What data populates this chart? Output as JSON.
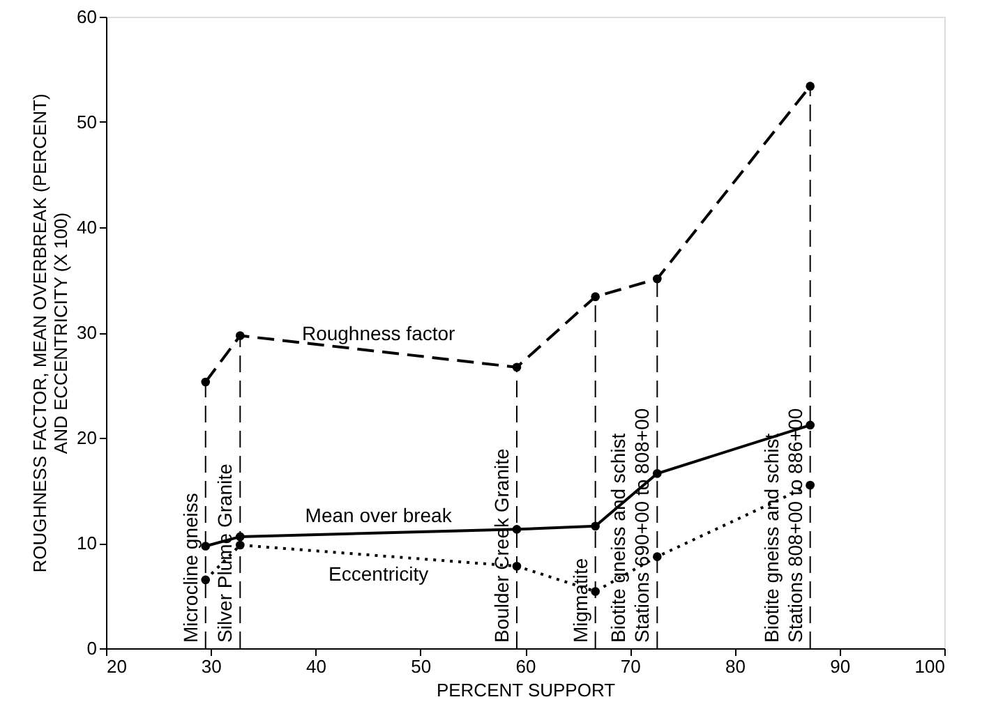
{
  "chart_data": {
    "type": "line",
    "xlabel": "PERCENT SUPPORT",
    "ylabel": "ROUGHNESS FACTOR, MEAN OVERBREAK (PERCENT)\nAND ECCENTRICITY (X 100)",
    "x": [
      29.5,
      32.8,
      59.2,
      66.7,
      72.6,
      87.2
    ],
    "series": [
      {
        "name": "Roughness factor",
        "color": "#000000",
        "line_style": "dashed",
        "values": [
          25.3,
          29.7,
          26.7,
          33.4,
          35.1,
          53.4
        ]
      },
      {
        "name": "Mean over break",
        "color": "#000000",
        "line_style": "solid",
        "values": [
          9.7,
          10.6,
          11.3,
          11.6,
          16.6,
          21.2
        ]
      },
      {
        "name": "Eccentricity",
        "color": "#000000",
        "line_style": "dotted",
        "values": [
          6.5,
          9.8,
          7.8,
          5.4,
          8.7,
          15.5
        ]
      }
    ],
    "ref_lines": [
      {
        "axis": "x",
        "value": 29.5,
        "label": "Microcline gneiss",
        "line_style": "dashed"
      },
      {
        "axis": "x",
        "value": 32.8,
        "label": "Silver Plume Granite",
        "line_style": "dashed"
      },
      {
        "axis": "x",
        "value": 59.2,
        "label": "Boulder Creek Granite",
        "line_style": "dashed"
      },
      {
        "axis": "x",
        "value": 66.7,
        "label": "Migmatite",
        "line_style": "dashed"
      },
      {
        "axis": "x",
        "value": 72.6,
        "label": "Biotite gneiss and schist\nStations 690+00 to 808+00",
        "line_style": "dashed"
      },
      {
        "axis": "x",
        "value": 87.2,
        "label": "Biotite gneiss and schist\nStations 808+00 to 886+00",
        "line_style": "dashed"
      }
    ],
    "xlim": [
      20,
      100
    ],
    "xticks": [
      20,
      30,
      40,
      50,
      60,
      70,
      80,
      90,
      100
    ],
    "ylim": [
      0,
      60
    ],
    "yticks": [
      0,
      10,
      20,
      30,
      40,
      50,
      60
    ],
    "grid": false,
    "marker": "circle"
  }
}
